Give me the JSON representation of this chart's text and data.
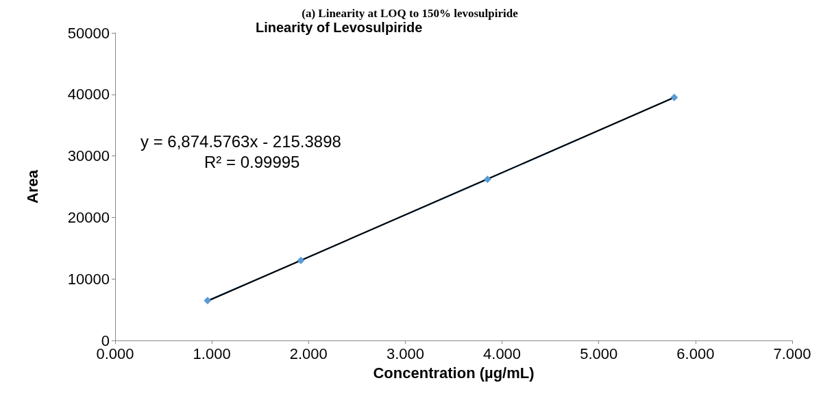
{
  "chart_data": {
    "type": "line",
    "title": "(a) Linearity at LOQ to 150% levosulpiride",
    "subtitle": "Linearity of Levosulpiride",
    "xlabel": "Concentration (µg/mL)",
    "ylabel": "Area",
    "annotations": [
      "y = 6,874.5763x - 215.3898",
      "R² = 0.99995"
    ],
    "series": [
      {
        "color": "#5b9bd5",
        "marker": "diamond",
        "x": [
          0.955,
          1.92,
          3.85,
          5.78
        ],
        "values": [
          6500,
          13000,
          26200,
          39500
        ]
      },
      {
        "color": "#000000",
        "marker": "none",
        "x": [
          0.955,
          5.78
        ],
        "values": [
          6400,
          39500
        ]
      }
    ],
    "xlim": [
      0,
      7
    ],
    "xticks": [
      {
        "value": 0,
        "label": "0.000"
      },
      {
        "value": 1,
        "label": "1.000"
      },
      {
        "value": 2,
        "label": "2.000"
      },
      {
        "value": 3,
        "label": "3.000"
      },
      {
        "value": 4,
        "label": "4.000"
      },
      {
        "value": 5,
        "label": "5.000"
      },
      {
        "value": 6,
        "label": "6.000"
      },
      {
        "value": 7,
        "label": "7.000"
      }
    ],
    "ylim": [
      0,
      50000
    ],
    "yticks": [
      0,
      10000,
      20000,
      30000,
      40000,
      50000
    ],
    "grid": false
  }
}
